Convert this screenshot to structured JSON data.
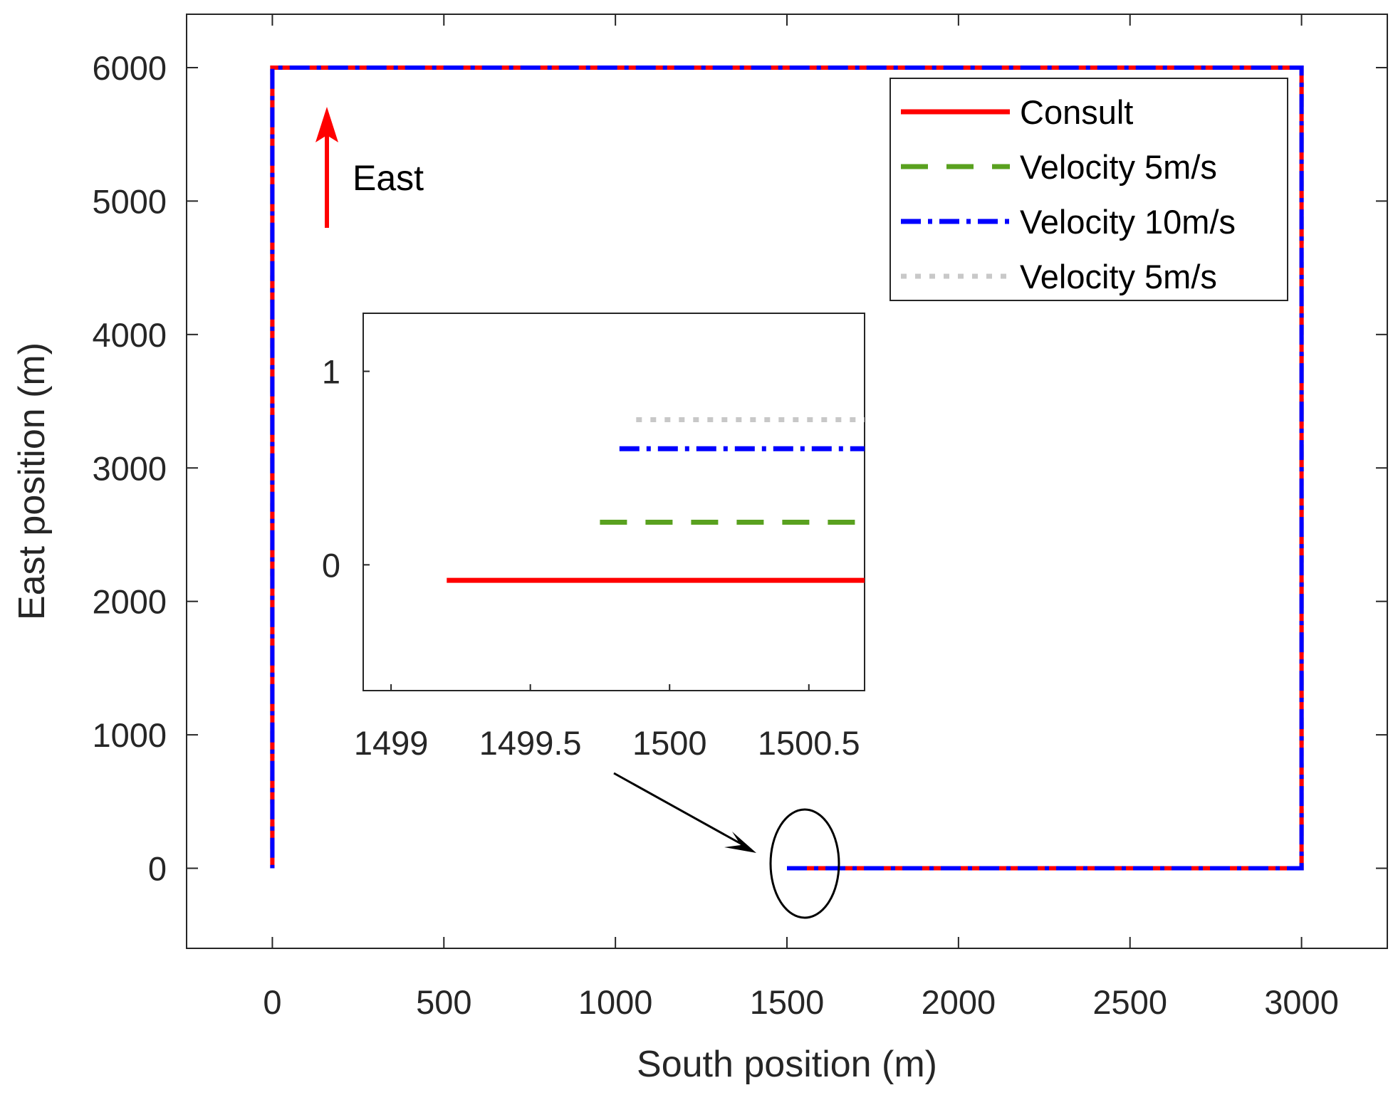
{
  "chart_data": {
    "type": "line",
    "xlabel": "South position (m)",
    "ylabel": "East position (m)",
    "xlim": [
      -250,
      3250
    ],
    "ylim": [
      -600,
      6400
    ],
    "xticks": [
      0,
      500,
      1000,
      1500,
      2000,
      2500,
      3000
    ],
    "yticks": [
      0,
      1000,
      2000,
      3000,
      4000,
      5000,
      6000
    ],
    "legend_position": "top-right",
    "series": [
      {
        "name": "Consult",
        "style": "solid",
        "color": "#ff0000",
        "x": [
          1500,
          3000,
          3000,
          0,
          0
        ],
        "y": [
          0,
          0,
          6000,
          6000,
          0
        ]
      },
      {
        "name": "Velocity 5m/s",
        "style": "dashed",
        "color": "#59a11f",
        "x": [
          1500,
          3000,
          3000,
          0,
          0
        ],
        "y": [
          0,
          0,
          6000,
          6000,
          0
        ]
      },
      {
        "name": "Velocity 10m/s",
        "style": "dashdot",
        "color": "#0000ff",
        "x": [
          1500,
          3000,
          3000,
          0,
          0
        ],
        "y": [
          0,
          0,
          6000,
          6000,
          0
        ]
      },
      {
        "name": "Velocity 5m/s",
        "style": "dotted",
        "color": "#c8c8c8",
        "x": [
          1500,
          3000,
          3000,
          0,
          0
        ],
        "y": [
          0,
          0,
          6000,
          6000,
          0
        ]
      }
    ],
    "annotations": [
      {
        "text": "East",
        "type": "arrow",
        "direction": "up",
        "color": "#ff0000"
      },
      {
        "text": "",
        "type": "ellipse",
        "x": 1560,
        "y": 0
      }
    ],
    "inset": {
      "xlim": [
        1498.9,
        1500.7
      ],
      "ylim": [
        -0.65,
        1.3
      ],
      "xticks": [
        1499,
        1499.5,
        1500,
        1500.5
      ],
      "yticks": [
        0,
        1
      ],
      "series": [
        {
          "name": "Consult",
          "x": [
            1499.2,
            1500.7
          ],
          "y": [
            -0.08,
            -0.08
          ]
        },
        {
          "name": "Velocity 5m/s",
          "x": [
            1499.75,
            1500.7
          ],
          "y": [
            0.22,
            0.22
          ]
        },
        {
          "name": "Velocity 10m/s",
          "x": [
            1499.82,
            1500.7
          ],
          "y": [
            0.6,
            0.6
          ]
        },
        {
          "name": "Velocity 5m/s",
          "x": [
            1499.88,
            1500.7
          ],
          "y": [
            0.75,
            0.75
          ]
        }
      ]
    }
  }
}
